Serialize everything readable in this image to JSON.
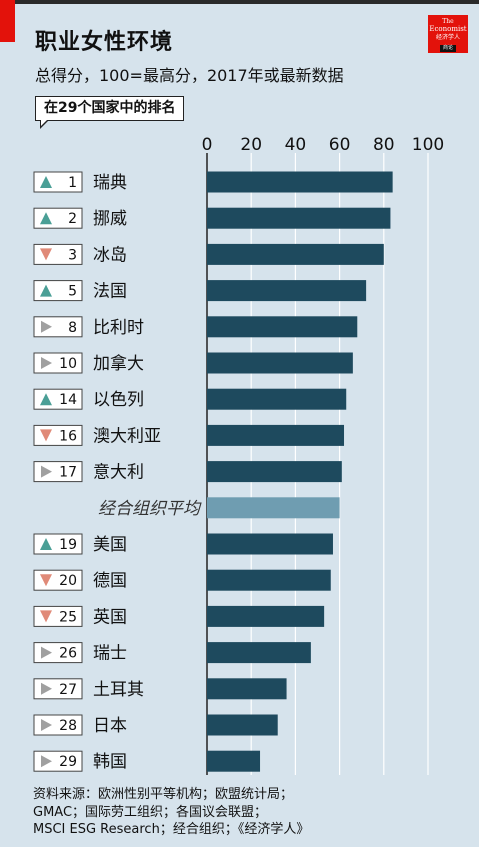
{
  "header": {
    "title": "职业女性环境",
    "subtitle": "总得分，100=最高分，2017年或最新数据",
    "rank_label": "在29个国家中的排名"
  },
  "logo": {
    "line1": "The",
    "line2": "Economist",
    "line3": "经济学人",
    "line4": "商论"
  },
  "colors": {
    "bar": "#1e4a5e",
    "average_bar": "#6f9db1",
    "up": "#4a9f96",
    "down": "#e08a78",
    "same": "#a0a0a0",
    "background": "#d6e3ec"
  },
  "chart_data": {
    "type": "bar",
    "orientation": "horizontal",
    "xlim": [
      0,
      100
    ],
    "xticks": [
      0,
      20,
      40,
      60,
      80,
      100
    ],
    "grid": true,
    "rows": [
      {
        "rank": "1",
        "trend": "up",
        "label": "瑞典",
        "value": 84
      },
      {
        "rank": "2",
        "trend": "up",
        "label": "挪威",
        "value": 83
      },
      {
        "rank": "3",
        "trend": "down",
        "label": "冰岛",
        "value": 80
      },
      {
        "rank": "5",
        "trend": "up",
        "label": "法国",
        "value": 72
      },
      {
        "rank": "8",
        "trend": "same",
        "label": "比利时",
        "value": 68
      },
      {
        "rank": "10",
        "trend": "same",
        "label": "加拿大",
        "value": 66
      },
      {
        "rank": "14",
        "trend": "up",
        "label": "以色列",
        "value": 63
      },
      {
        "rank": "16",
        "trend": "down",
        "label": "澳大利亚",
        "value": 62
      },
      {
        "rank": "17",
        "trend": "same",
        "label": "意大利",
        "value": 61
      },
      {
        "rank": "",
        "trend": "",
        "label": "经合组织平均",
        "value": 60,
        "is_average": true
      },
      {
        "rank": "19",
        "trend": "up",
        "label": "美国",
        "value": 57
      },
      {
        "rank": "20",
        "trend": "down",
        "label": "德国",
        "value": 56
      },
      {
        "rank": "25",
        "trend": "down",
        "label": "英国",
        "value": 53
      },
      {
        "rank": "26",
        "trend": "same",
        "label": "瑞士",
        "value": 47
      },
      {
        "rank": "27",
        "trend": "same",
        "label": "土耳其",
        "value": 36
      },
      {
        "rank": "28",
        "trend": "same",
        "label": "日本",
        "value": 32
      },
      {
        "rank": "29",
        "trend": "same",
        "label": "韩国",
        "value": 24
      }
    ]
  },
  "footer": {
    "line1": "资料来源：欧洲性别平等机构；欧盟统计局；",
    "line2": "GMAC；国际劳工组织；各国议会联盟；",
    "line3": "MSCI ESG Research；经合组织；《经济学人》"
  }
}
